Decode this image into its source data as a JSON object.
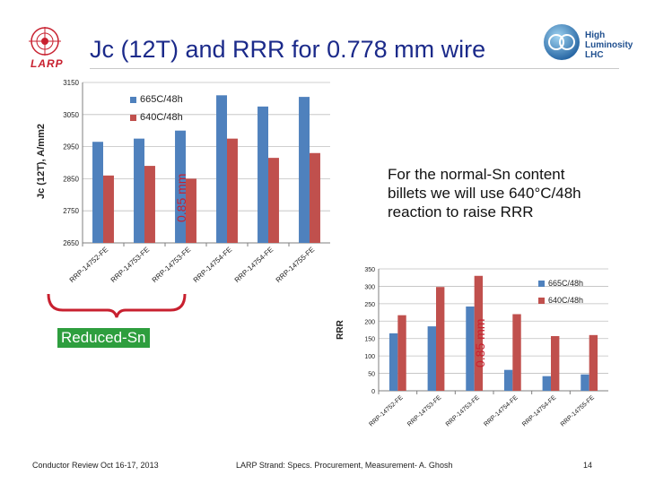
{
  "slide": {
    "title": "Jc (12T) and RRR for 0.778 mm wire",
    "larp_label": "LARP",
    "hl_lhc_lines": [
      "High",
      "Luminosity",
      "LHC"
    ],
    "note": "For the normal-Sn content billets we will use 640°C/48h reaction to raise RRR",
    "reduced_sn_label": "Reduced-Sn",
    "mm_label_1": "0.85 mm",
    "mm_label_2": "0.85 mm",
    "footer_left": "Conductor Review Oct 16-17, 2013",
    "footer_center": "LARP Strand: Specs. Procurement, Measurement- A. Ghosh",
    "page_number": "14"
  },
  "colors": {
    "blue": "#4f81bd",
    "red": "#c0504d",
    "green": "#2e9e3e",
    "title": "#1b2a8a"
  },
  "chart_data": [
    {
      "type": "bar",
      "ylabel": "Jc (12T), A/mm2",
      "xlabel": "",
      "ylim": [
        2650,
        3150
      ],
      "yticks": [
        2650,
        2750,
        2850,
        2950,
        3050,
        3150
      ],
      "grid": true,
      "legend": "top-left",
      "categories": [
        "RRP-14752-FE",
        "RRP-14753-FE",
        "RRP-14753-FE",
        "RRP-14754-FE",
        "RRP-14754-FE",
        "RRP-14755-FE"
      ],
      "series": [
        {
          "name": "665C/48h",
          "values": [
            2965,
            2975,
            3000,
            3110,
            3075,
            3105
          ]
        },
        {
          "name": "640C/48h",
          "values": [
            2860,
            2890,
            2850,
            2975,
            2915,
            2930
          ]
        }
      ]
    },
    {
      "type": "bar",
      "ylabel": "RRR",
      "xlabel": "",
      "ylim": [
        0,
        350
      ],
      "yticks": [
        0,
        50,
        100,
        150,
        200,
        250,
        300,
        350
      ],
      "grid": true,
      "legend": "right",
      "categories": [
        "RRP-14752-FE",
        "RRP-14753-FE",
        "RRP-14753-FE",
        "RRP-14754-FE",
        "RRP-14754-FE",
        "RRP-14755-FE"
      ],
      "series": [
        {
          "name": "665C/48h",
          "values": [
            165,
            185,
            242,
            60,
            42,
            47
          ]
        },
        {
          "name": "640C/48h",
          "values": [
            217,
            298,
            330,
            220,
            157,
            160
          ]
        }
      ]
    }
  ]
}
